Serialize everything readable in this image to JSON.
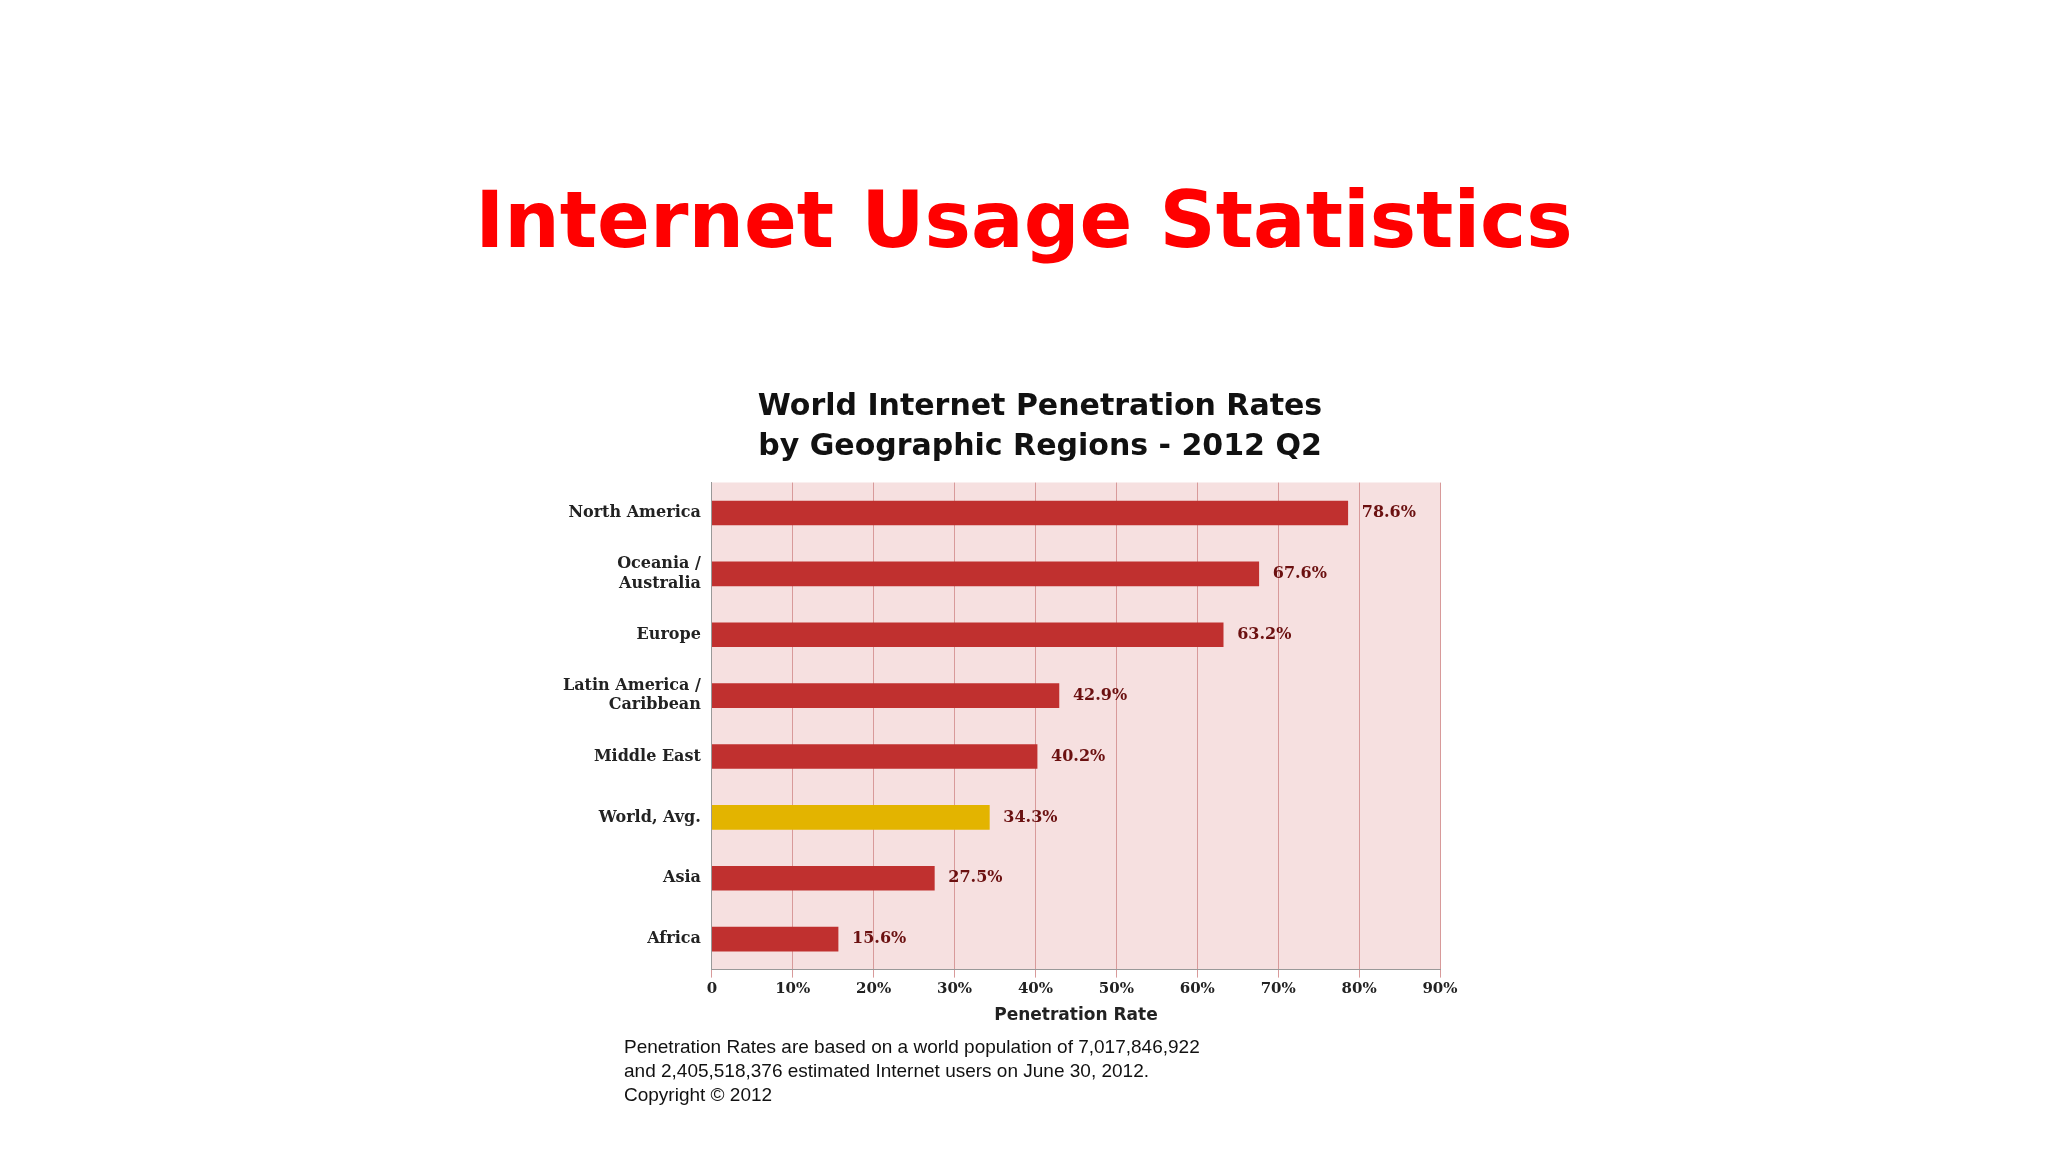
{
  "chart_data": {
    "type": "bar",
    "orientation": "horizontal",
    "title": "Internet Usage Statistics",
    "subtitle": "World Internet Penetration Rates\nby Geographic Regions - 2012 Q2",
    "categories": [
      "North America",
      "Oceania / Australia",
      "Europe",
      "Latin America / Caribbean",
      "Middle East",
      "World, Avg.",
      "Asia",
      "Africa"
    ],
    "values": [
      78.6,
      67.6,
      63.2,
      42.9,
      40.2,
      34.3,
      27.5,
      15.6
    ],
    "colors": [
      "#c0302f",
      "#c0302f",
      "#c0302f",
      "#c0302f",
      "#c0302f",
      "#e3b400",
      "#c0302f",
      "#c0302f"
    ],
    "value_labels": [
      "78.6%",
      "67.6%",
      "63.2%",
      "42.9%",
      "40.2%",
      "34.3%",
      "27.5%",
      "15.6%"
    ],
    "xlim": [
      0,
      90
    ],
    "xticks": [
      0,
      {
        "value": 10,
        "label": "10%"
      },
      {
        "value": 20,
        "label": "20%"
      },
      {
        "value": 30,
        "label": "30%"
      },
      {
        "value": 40,
        "label": "40%"
      },
      {
        "value": 50,
        "label": "50%"
      },
      {
        "value": 60,
        "label": "60%"
      },
      {
        "value": 70,
        "label": "70%"
      },
      {
        "value": 80,
        "label": "80%"
      },
      {
        "value": 90,
        "label": "90%"
      }
    ],
    "xlabel": "Penetration Rate",
    "grid": "x",
    "legend": false,
    "annotations": [
      "Penetration Rates are based on a world population of 7,017,846,922",
      "and 2,405,518,376 estimated Internet users on June 30, 2012.",
      "Copyright © 2012"
    ]
  }
}
